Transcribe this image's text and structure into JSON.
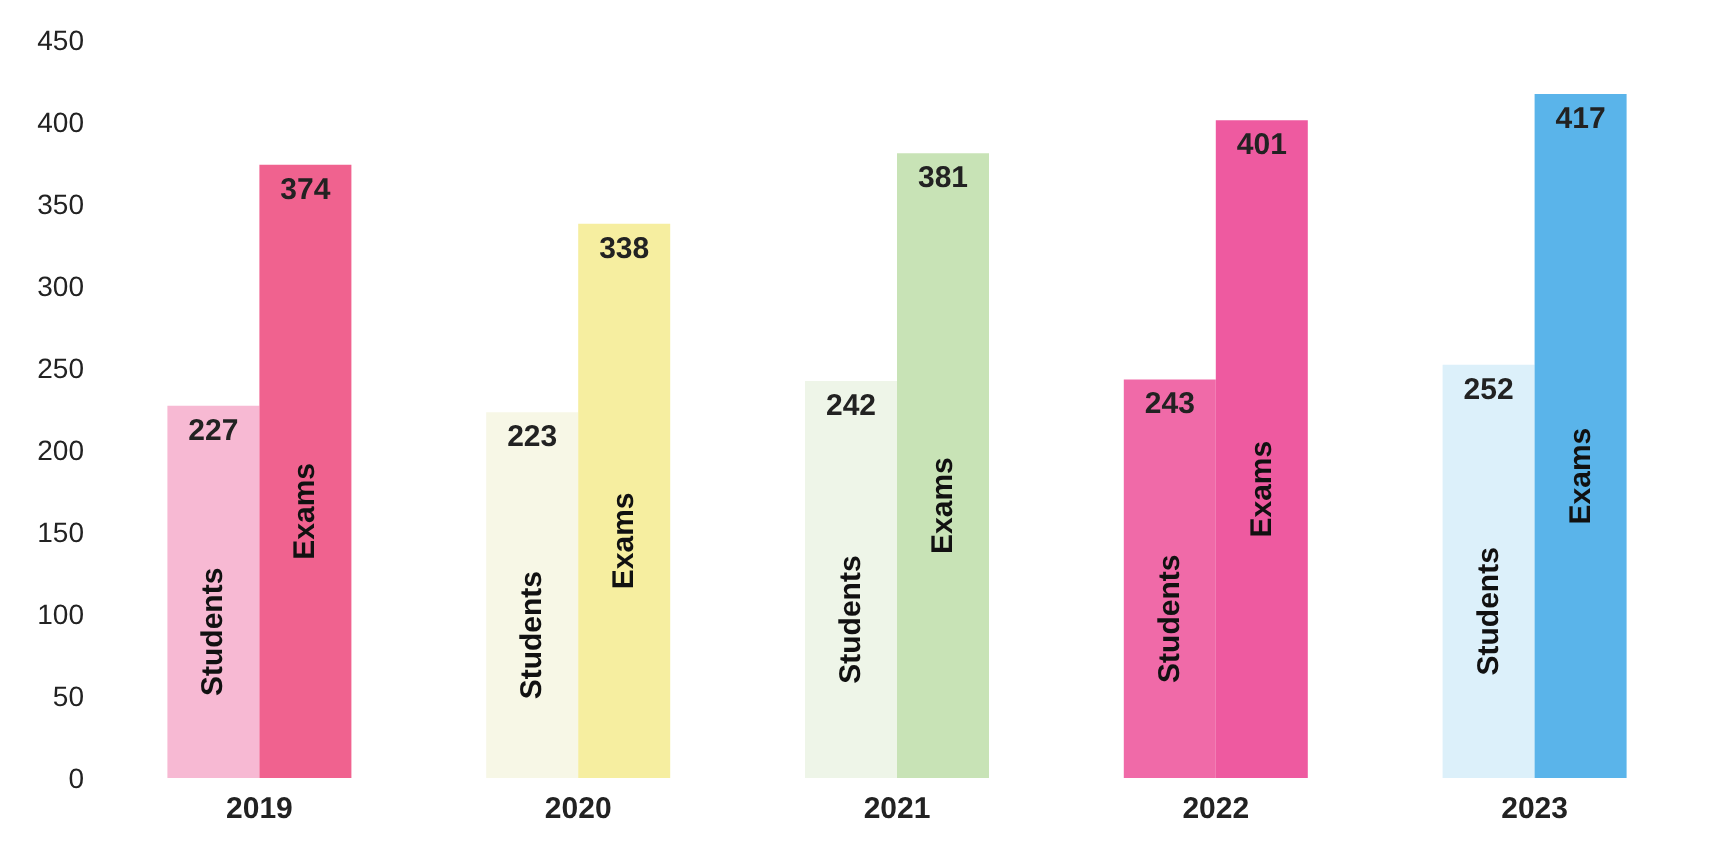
{
  "chart_data": {
    "type": "bar",
    "categories": [
      "2019",
      "2020",
      "2021",
      "2022",
      "2023"
    ],
    "series": [
      {
        "name": "Students",
        "values": [
          227,
          223,
          242,
          243,
          252
        ],
        "colors": [
          "#f7b9d3",
          "#f7f7e6",
          "#eef5e8",
          "#f06aa8",
          "#dcf0fa"
        ]
      },
      {
        "name": "Exams",
        "values": [
          374,
          338,
          381,
          401,
          417
        ],
        "colors": [
          "#f0628f",
          "#f6eea0",
          "#c8e3b6",
          "#ee5aa0",
          "#5ab4ea"
        ]
      }
    ],
    "ylim": [
      0,
      450
    ],
    "yticks": [
      0,
      50,
      100,
      150,
      200,
      250,
      300,
      350,
      400,
      450
    ],
    "data_labels": true,
    "grid": false,
    "legend": false
  }
}
